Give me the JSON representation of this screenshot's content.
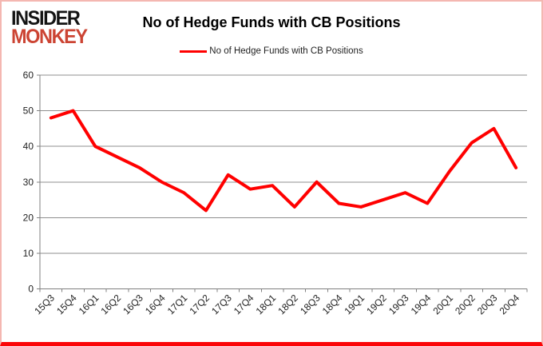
{
  "logo": {
    "line1": "INSIDER",
    "line2": "MONKEY"
  },
  "header": {
    "title": "No of Hedge Funds with CB Positions"
  },
  "legend": {
    "label": "No of Hedge Funds with CB Positions"
  },
  "colors": {
    "line": "#ff0000",
    "grid": "#8f8f8f",
    "axis": "#808080",
    "logo_red": "#cc4433",
    "frame_border": "#f4b7b1",
    "frame_bottom": "#fb0608"
  },
  "chart_data": {
    "type": "line",
    "title": "No of Hedge Funds with CB Positions",
    "categories": [
      "15Q3",
      "15Q4",
      "16Q1",
      "16Q2",
      "16Q3",
      "16Q4",
      "17Q1",
      "17Q2",
      "17Q3",
      "17Q4",
      "18Q1",
      "18Q2",
      "18Q3",
      "18Q4",
      "19Q1",
      "19Q2",
      "19Q3",
      "19Q4",
      "20Q1",
      "20Q2",
      "20Q3",
      "20Q4"
    ],
    "series": [
      {
        "name": "No of Hedge Funds with CB Positions",
        "color": "#ff0000",
        "values": [
          48,
          50,
          40,
          37,
          34,
          30,
          27,
          22,
          32,
          28,
          29,
          23,
          30,
          24,
          23,
          25,
          27,
          24,
          33,
          41,
          45,
          34
        ]
      }
    ],
    "xlabel": "",
    "ylabel": "",
    "ylim": [
      0,
      60
    ],
    "yticks": [
      0,
      10,
      20,
      30,
      40,
      50,
      60
    ],
    "grid": true,
    "legend_position": "top"
  }
}
